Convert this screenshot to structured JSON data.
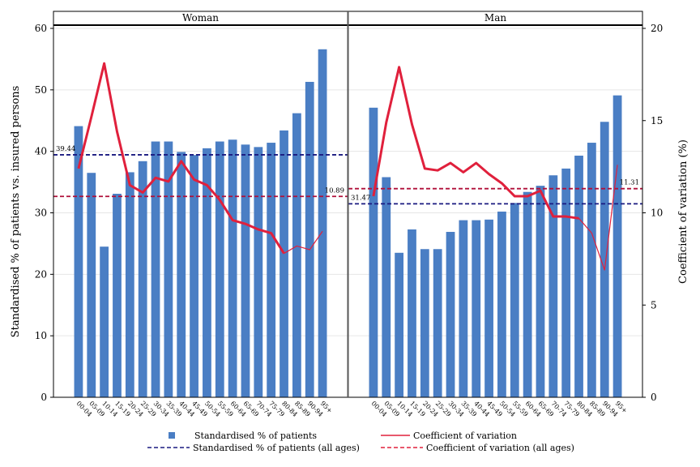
{
  "chart_data": {
    "type": "bar",
    "categories": [
      "00-04",
      "05-09",
      "10-14",
      "15-19",
      "20-24",
      "25-29",
      "30-34",
      "35-39",
      "40-44",
      "45-49",
      "50-54",
      "55-59",
      "60-64",
      "65-69",
      "70-74",
      "75-79",
      "80-84",
      "85-89",
      "90-94",
      "95+"
    ],
    "y_left_label": "Standardised % of patients vs. insured persons",
    "y_right_label": "Coefficient of variation (%)",
    "ylim_left": [
      0,
      60
    ],
    "ylim_right": [
      0,
      20
    ],
    "yticks_left": [
      "0",
      "10",
      "20",
      "30",
      "40",
      "50",
      "60"
    ],
    "yticks_right": [
      "0",
      "5",
      "10",
      "15",
      "20"
    ],
    "panels": [
      {
        "title": "Woman",
        "bars": [
          44.1,
          36.5,
          24.5,
          33.1,
          36.6,
          38.4,
          41.6,
          41.6,
          39.9,
          39.4,
          40.5,
          41.6,
          41.9,
          41.1,
          40.7,
          41.4,
          43.4,
          46.2,
          51.3,
          56.6
        ],
        "cv": [
          12.4,
          15.2,
          18.1,
          14.4,
          11.5,
          11.1,
          11.9,
          11.7,
          12.8,
          11.8,
          11.5,
          10.7,
          9.6,
          9.4,
          9.1,
          8.9,
          7.8,
          8.2,
          8.0,
          9.0
        ],
        "cv_thin_from_index": 16,
        "avg_pct": 39.44,
        "avg_pct_label": "39.44",
        "avg_cv": 10.89,
        "avg_cv_label": "10.89"
      },
      {
        "title": "Man",
        "bars": [
          47.1,
          35.8,
          23.5,
          27.3,
          24.1,
          24.1,
          26.9,
          28.8,
          28.8,
          28.9,
          30.2,
          31.6,
          33.4,
          34.4,
          36.1,
          37.2,
          39.3,
          41.4,
          44.8,
          49.1
        ],
        "cv": [
          10.9,
          14.9,
          17.9,
          14.8,
          12.4,
          12.3,
          12.7,
          12.2,
          12.7,
          12.1,
          11.6,
          10.9,
          10.9,
          11.2,
          9.8,
          9.8,
          9.7,
          8.9,
          6.9,
          12.6
        ],
        "cv_thin_from_index": 16,
        "avg_pct": 31.47,
        "avg_pct_label": "31.47",
        "avg_cv": 11.31,
        "avg_cv_label": "11.31"
      }
    ],
    "legend": [
      {
        "label": "Standardised % of patients",
        "kind": "square",
        "color": "#4a7ec4"
      },
      {
        "label": "Coefficient of variation",
        "kind": "line",
        "color": "#e0203c"
      },
      {
        "label": "Standardised % of patients (all ages)",
        "kind": "dash",
        "color": "#1a1a80"
      },
      {
        "label": "Coefficient of variation (all ages)",
        "kind": "dash",
        "color": "#e0203c"
      }
    ],
    "colors": {
      "bar": "#4a7ec4",
      "cv_line": "#e0203c",
      "avg_pct_line": "#1a1a80",
      "avg_cv_line": "#b0103a",
      "grid": "#e6e6e6"
    }
  }
}
